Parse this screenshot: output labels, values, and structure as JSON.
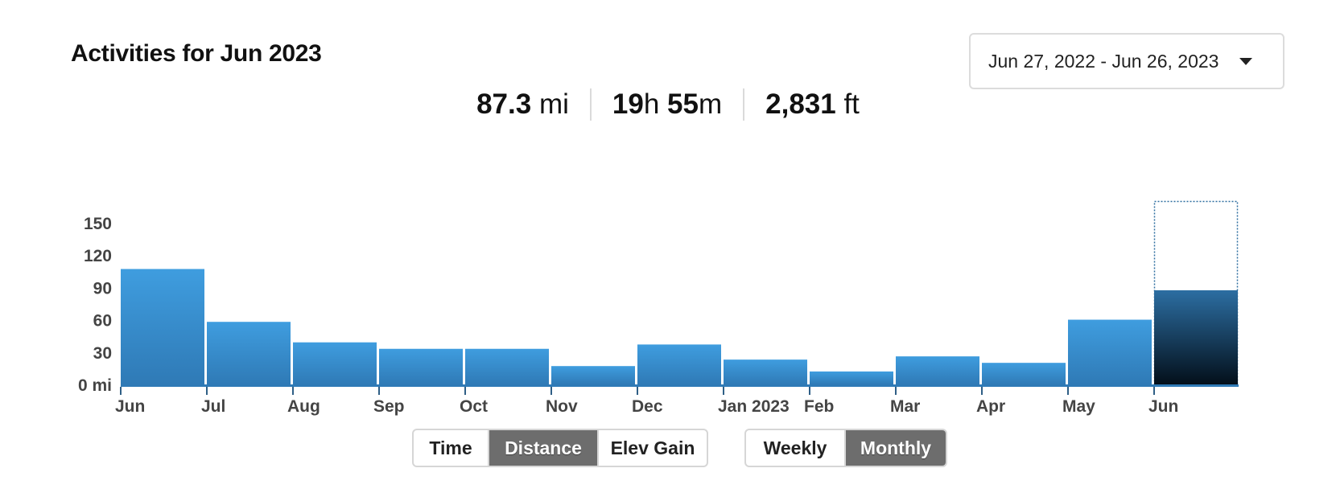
{
  "header": {
    "title": "Activities for Jun 2023",
    "date_range": "Jun 27, 2022 - Jun 26, 2023",
    "dropdown_icon": "caret-down-icon"
  },
  "stats": {
    "distance_value": "87.3",
    "distance_unit": "mi",
    "time_hours": "19",
    "time_h_unit": "h",
    "time_minutes": "55",
    "time_m_unit": "m",
    "elevation_value": "2,831",
    "elevation_unit": "ft"
  },
  "metric_toggle": {
    "options": [
      "Time",
      "Distance",
      "Elev Gain"
    ],
    "selected": "Distance"
  },
  "period_toggle": {
    "options": [
      "Weekly",
      "Monthly"
    ],
    "selected": "Monthly"
  },
  "colors": {
    "bar_top": "#3f9ddf",
    "bar_bottom": "#2f7ab6",
    "selected_top": "#2c6ea2",
    "selected_bottom": "#030f1a",
    "axis": "#2f7ab6",
    "dotted_outline": "#2f6fa0"
  },
  "chart_data": {
    "type": "bar",
    "title": "",
    "xlabel": "",
    "ylabel": "",
    "y_unit_label": "mi",
    "ylim": [
      0,
      170
    ],
    "yticks": [
      0,
      30,
      60,
      90,
      120,
      150
    ],
    "categories": [
      "Jun",
      "Jul",
      "Aug",
      "Sep",
      "Oct",
      "Nov",
      "Dec",
      "Jan 2023",
      "Feb",
      "Mar",
      "Apr",
      "May",
      "Jun"
    ],
    "series": [
      {
        "values": [
          107,
          58,
          39,
          33,
          33,
          17,
          37,
          23,
          12,
          26,
          20,
          60,
          87.3
        ]
      }
    ],
    "selected_index": 12,
    "grid": false,
    "legend": "none"
  }
}
